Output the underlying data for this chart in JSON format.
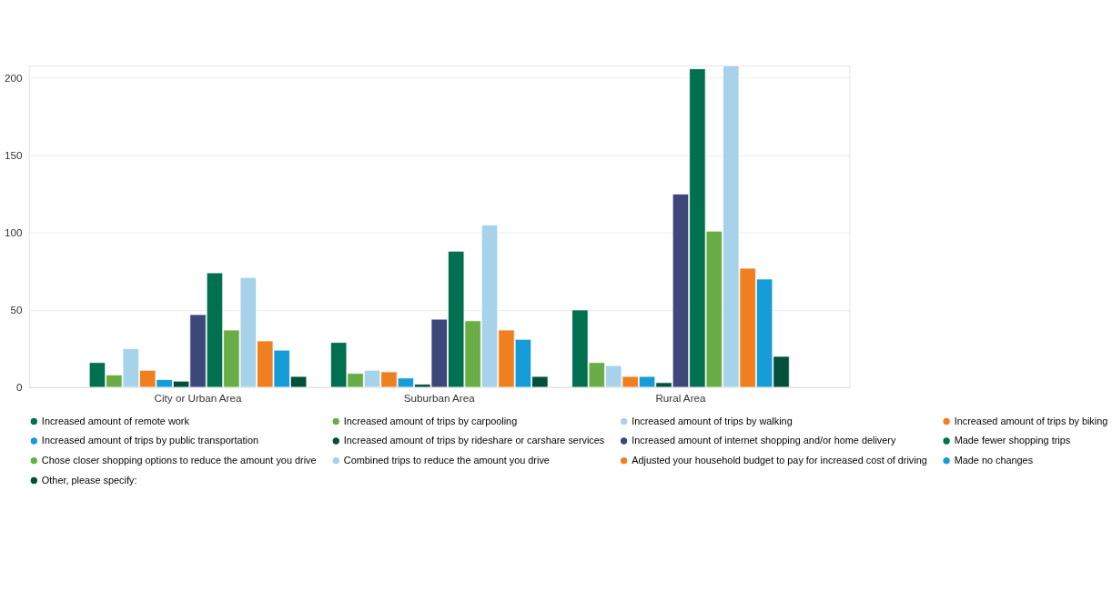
{
  "chart_data": {
    "type": "bar",
    "categories": [
      "City or Urban Area",
      "Suburban Area",
      "Rural Area"
    ],
    "series": [
      {
        "name": "Increased amount of remote work",
        "color": "#007050",
        "values": [
          16,
          29,
          50
        ]
      },
      {
        "name": "Increased amount of trips by carpooling",
        "color": "#6aad47",
        "values": [
          8,
          9,
          16
        ]
      },
      {
        "name": "Increased amount of trips by walking",
        "color": "#a6d2ea",
        "values": [
          25,
          11,
          14
        ]
      },
      {
        "name": "Increased amount of trips by biking",
        "color": "#f07f20",
        "values": [
          11,
          10,
          7
        ]
      },
      {
        "name": "Increased amount of trips by public transportation",
        "color": "#159cd8",
        "values": [
          5,
          6,
          7
        ]
      },
      {
        "name": "Increased amount of trips by rideshare or carshare services",
        "color": "#00503a",
        "values": [
          4,
          2,
          3
        ]
      },
      {
        "name": "Increased amount of internet shopping and/or home delivery",
        "color": "#3e477a",
        "values": [
          47,
          44,
          125
        ]
      },
      {
        "name": "Made fewer shopping trips",
        "color": "#007050",
        "values": [
          74,
          88,
          206
        ]
      },
      {
        "name": "Chose closer shopping options to reduce the amount you drive",
        "color": "#6aad47",
        "values": [
          37,
          43,
          101
        ]
      },
      {
        "name": "Combined trips to reduce the amount you drive",
        "color": "#a6d2ea",
        "values": [
          71,
          105,
          208
        ]
      },
      {
        "name": "Adjusted your household budget to pay for increased cost of driving",
        "color": "#f07f20",
        "values": [
          30,
          37,
          77
        ]
      },
      {
        "name": "Made no changes",
        "color": "#159cd8",
        "values": [
          24,
          31,
          70
        ]
      },
      {
        "name": "Other, please specify:",
        "color": "#00503a",
        "values": [
          7,
          7,
          20
        ]
      }
    ],
    "ylim": [
      0,
      208
    ],
    "yticks": [
      0,
      50,
      100,
      150,
      200
    ],
    "grid": "y",
    "legend": "bottom"
  }
}
